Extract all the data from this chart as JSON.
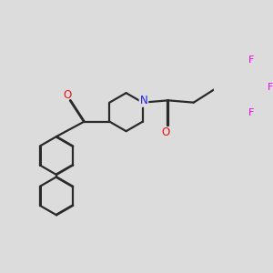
{
  "bg_color": "#dcdcdc",
  "bond_color": "#2a2a2a",
  "N_color": "#2020ee",
  "O_color": "#ee1010",
  "F_color": "#ee00ee",
  "line_width": 1.6,
  "dbo": 0.014,
  "figsize": [
    3.0,
    3.0
  ],
  "dpi": 100,
  "xlim": [
    0,
    10
  ],
  "ylim": [
    0,
    10
  ]
}
